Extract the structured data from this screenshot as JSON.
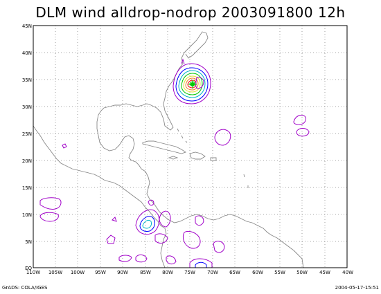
{
  "title": "DLM wind alldrop-nodrop 2003091800 12h",
  "footer_left": "GrADS: COLA/IGES",
  "footer_right": "2004-05-17-15:51",
  "y_labels": [
    "45N",
    "40N",
    "35N",
    "30N",
    "25N",
    "20N",
    "15N",
    "10N",
    "5N",
    "EQ"
  ],
  "x_labels": [
    "110W",
    "105W",
    "100W",
    "95W",
    "90W",
    "85W",
    "80W",
    "75W",
    "70W",
    "65W",
    "60W",
    "55W",
    "50W",
    "45W",
    "40W"
  ],
  "colors": {
    "frame": "#000000",
    "grid": "#888888",
    "coast": "#888888",
    "contour_purple": "#a000c8",
    "contour_blue": "#0000ff",
    "contour_cyan": "#00b4c8",
    "contour_green": "#00c800",
    "contour_yellow": "#e6dc32",
    "contour_orange": "#f08228",
    "contour_red": "#ff0000"
  }
}
